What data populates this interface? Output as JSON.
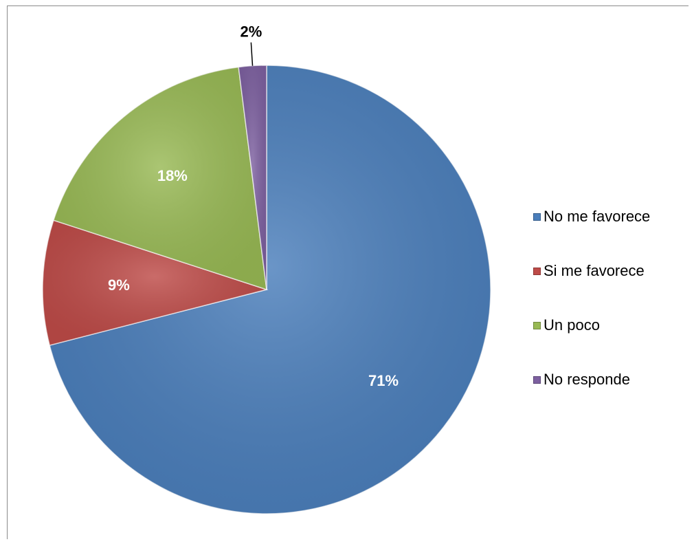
{
  "chart_data": {
    "type": "pie",
    "title": "",
    "slices": [
      {
        "label": "No me favorece",
        "value": 71,
        "display": "71%",
        "color": "#4A7EBB"
      },
      {
        "label": "Si me favorece",
        "value": 9,
        "display": "9%",
        "color": "#BE4B48"
      },
      {
        "label": "Un poco",
        "value": 18,
        "display": "18%",
        "color": "#98B954"
      },
      {
        "label": "No responde",
        "value": 2,
        "display": "2%",
        "color": "#7D60A0"
      }
    ],
    "start_angle_deg": 0,
    "direction": "clockwise",
    "legend_position": "right"
  }
}
